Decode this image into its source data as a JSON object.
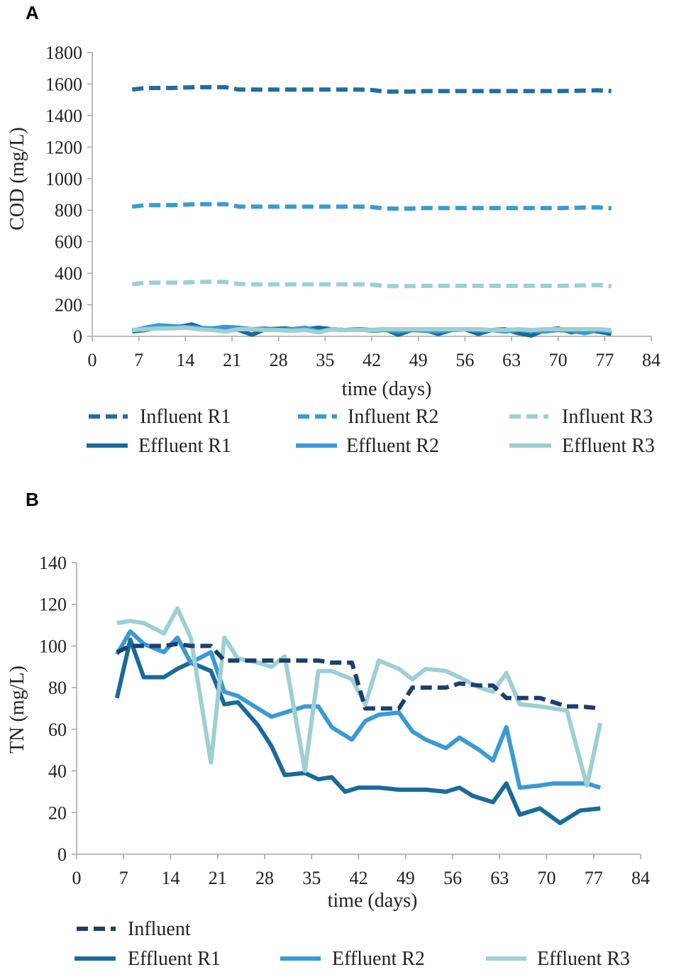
{
  "chart_data": [
    {
      "type": "line",
      "panel": "A",
      "title": "",
      "xlabel": "time (days)",
      "ylabel": "COD (mg/L)",
      "xlim": [
        0,
        84
      ],
      "ylim": [
        0,
        1800
      ],
      "xticks": [
        0,
        7,
        14,
        21,
        28,
        35,
        42,
        49,
        56,
        63,
        70,
        77,
        84
      ],
      "yticks": [
        0,
        200,
        400,
        600,
        800,
        1000,
        1200,
        1400,
        1600,
        1800
      ],
      "legend_position": "bottom",
      "series": [
        {
          "name": "Influent R1",
          "color": "#1f6f9f",
          "style": "dashed",
          "x": [
            6,
            8,
            10,
            12,
            14,
            16,
            18,
            20,
            22,
            24,
            28,
            32,
            36,
            40,
            42,
            44,
            46,
            48,
            50,
            56,
            63,
            70,
            76,
            78
          ],
          "y": [
            1565,
            1575,
            1575,
            1575,
            1578,
            1580,
            1580,
            1580,
            1565,
            1565,
            1565,
            1565,
            1565,
            1565,
            1562,
            1552,
            1552,
            1552,
            1555,
            1555,
            1555,
            1555,
            1560,
            1555
          ]
        },
        {
          "name": "Influent R2",
          "color": "#3a9ad3",
          "style": "dashed",
          "x": [
            6,
            8,
            10,
            12,
            14,
            16,
            18,
            20,
            22,
            24,
            28,
            32,
            36,
            40,
            42,
            44,
            46,
            48,
            50,
            56,
            63,
            70,
            76,
            78
          ],
          "y": [
            822,
            832,
            832,
            832,
            835,
            838,
            838,
            838,
            823,
            822,
            822,
            822,
            822,
            822,
            820,
            810,
            810,
            810,
            813,
            813,
            813,
            813,
            818,
            812
          ]
        },
        {
          "name": "Influent R3",
          "color": "#9dcfd3",
          "style": "dashed",
          "x": [
            6,
            8,
            10,
            12,
            14,
            16,
            18,
            20,
            22,
            24,
            28,
            32,
            36,
            40,
            42,
            44,
            46,
            48,
            50,
            56,
            63,
            70,
            76,
            78
          ],
          "y": [
            330,
            340,
            340,
            340,
            342,
            345,
            345,
            345,
            332,
            330,
            330,
            330,
            330,
            330,
            328,
            318,
            318,
            318,
            320,
            320,
            320,
            320,
            325,
            318
          ]
        },
        {
          "name": "Effluent R1",
          "color": "#1a6a9a",
          "style": "solid",
          "x": [
            6,
            8,
            10,
            13,
            15,
            17,
            20,
            22,
            24,
            26,
            29,
            31,
            34,
            36,
            38,
            40,
            42,
            44,
            46,
            48,
            50,
            52,
            54,
            56,
            58,
            60,
            62,
            64,
            66,
            68,
            70,
            72,
            74,
            76,
            78
          ],
          "y": [
            30,
            40,
            55,
            60,
            75,
            45,
            55,
            40,
            10,
            45,
            50,
            40,
            55,
            45,
            40,
            45,
            40,
            45,
            10,
            40,
            40,
            15,
            40,
            45,
            15,
            40,
            45,
            20,
            5,
            40,
            50,
            25,
            40,
            30,
            15
          ]
        },
        {
          "name": "Effluent R2",
          "color": "#3a9ad3",
          "style": "solid",
          "x": [
            6,
            8,
            10,
            12,
            14,
            16,
            18,
            20,
            22,
            24,
            26,
            28,
            30,
            32,
            34,
            36,
            38,
            40,
            42,
            44,
            46,
            48,
            50,
            52,
            54,
            56,
            58,
            60,
            62,
            64,
            66,
            68,
            70,
            72,
            74,
            76,
            78
          ],
          "y": [
            35,
            55,
            70,
            65,
            60,
            55,
            50,
            60,
            55,
            45,
            50,
            40,
            45,
            55,
            30,
            45,
            40,
            45,
            35,
            40,
            30,
            40,
            35,
            30,
            40,
            45,
            35,
            40,
            30,
            40,
            35,
            30,
            40,
            35,
            20,
            40,
            30
          ]
        },
        {
          "name": "Effluent R3",
          "color": "#9dcfd3",
          "style": "solid",
          "x": [
            6,
            8,
            10,
            12,
            14,
            16,
            18,
            20,
            22,
            24,
            26,
            28,
            30,
            32,
            34,
            36,
            38,
            40,
            42,
            44,
            46,
            48,
            50,
            52,
            54,
            56,
            58,
            60,
            62,
            64,
            66,
            68,
            70,
            72,
            74,
            76,
            78
          ],
          "y": [
            40,
            45,
            50,
            50,
            55,
            45,
            40,
            30,
            45,
            45,
            40,
            40,
            35,
            40,
            25,
            45,
            40,
            40,
            40,
            45,
            45,
            45,
            45,
            45,
            45,
            45,
            45,
            40,
            40,
            45,
            40,
            45,
            45,
            45,
            45,
            45,
            40
          ]
        }
      ]
    },
    {
      "type": "line",
      "panel": "B",
      "title": "",
      "xlabel": "time (days)",
      "ylabel": "TN (mg/L)",
      "xlim": [
        0,
        84
      ],
      "ylim": [
        0,
        140
      ],
      "xticks": [
        0,
        7,
        14,
        21,
        28,
        35,
        42,
        49,
        56,
        63,
        70,
        77,
        84
      ],
      "yticks": [
        0,
        20,
        40,
        60,
        80,
        100,
        120,
        140
      ],
      "legend_position": "bottom",
      "series": [
        {
          "name": "Influent",
          "color": "#1b3f6e",
          "style": "dashed",
          "x": [
            6,
            8,
            13,
            15,
            17,
            20,
            22,
            24,
            28,
            31,
            34,
            36,
            38,
            41,
            43,
            45,
            48,
            50,
            52,
            55,
            57,
            60,
            62,
            64,
            66,
            69,
            73,
            75,
            78
          ],
          "y": [
            97,
            100,
            100,
            101,
            100,
            100,
            93,
            93,
            93,
            93,
            93,
            93,
            92,
            92,
            70,
            70,
            70,
            80,
            80,
            80,
            82,
            81,
            81,
            75,
            75,
            75,
            71,
            71,
            70
          ]
        },
        {
          "name": "Effluent R1",
          "color": "#1a6a9a",
          "style": "solid",
          "x": [
            6,
            8,
            10,
            13,
            15,
            17,
            20,
            22,
            24,
            27,
            29,
            31,
            34,
            36,
            38,
            40,
            42,
            45,
            48,
            50,
            52,
            55,
            57,
            59,
            62,
            64,
            66,
            69,
            72,
            75,
            78
          ],
          "y": [
            75,
            103,
            85,
            85,
            89,
            92,
            88,
            72,
            73,
            62,
            52,
            38,
            39,
            36,
            37,
            30,
            32,
            32,
            31,
            31,
            31,
            30,
            32,
            28,
            25,
            34,
            19,
            22,
            15,
            21,
            22
          ]
        },
        {
          "name": "Effluent R2",
          "color": "#3a9ad3",
          "style": "solid",
          "x": [
            6,
            8,
            10,
            13,
            15,
            17,
            20,
            22,
            24,
            27,
            29,
            31,
            34,
            36,
            38,
            41,
            43,
            45,
            48,
            50,
            52,
            55,
            57,
            60,
            62,
            64,
            66,
            69,
            71,
            73,
            76,
            78
          ],
          "y": [
            96,
            107,
            101,
            97,
            104,
            92,
            97,
            78,
            76,
            70,
            66,
            68,
            71,
            71,
            61,
            55,
            64,
            67,
            68,
            59,
            55,
            51,
            56,
            50,
            45,
            61,
            32,
            33,
            34,
            34,
            34,
            32
          ]
        },
        {
          "name": "Effluent R3",
          "color": "#9dcfd3",
          "style": "solid",
          "x": [
            6,
            8,
            10,
            13,
            15,
            17,
            20,
            22,
            24,
            27,
            29,
            31,
            34,
            36,
            38,
            41,
            43,
            45,
            48,
            50,
            52,
            55,
            57,
            60,
            62,
            64,
            66,
            69,
            73,
            76,
            78
          ],
          "y": [
            111,
            112,
            111,
            106,
            118,
            104,
            44,
            104,
            94,
            92,
            90,
            95,
            40,
            88,
            88,
            84,
            72,
            93,
            89,
            84,
            89,
            88,
            85,
            80,
            78,
            87,
            72,
            71,
            69,
            33,
            63
          ]
        }
      ]
    }
  ]
}
